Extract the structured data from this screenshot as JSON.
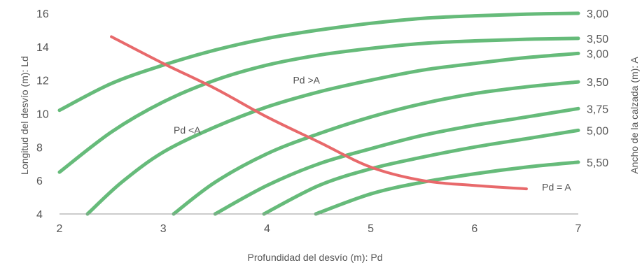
{
  "chart_data": {
    "type": "line",
    "title": "",
    "xlabel": "Profundidad del desvío (m): Pd",
    "ylabel": "Longitud del desvío (m): Ld",
    "ylabel_right": "Ancho de la calzada (m): A",
    "xlim": [
      2,
      7
    ],
    "ylim": [
      4,
      16
    ],
    "xticks": [
      "2",
      "3",
      "4",
      "5",
      "6",
      "7"
    ],
    "yticks": [
      "4",
      "6",
      "8",
      "10",
      "12",
      "14",
      "16"
    ],
    "grid": false,
    "colors": {
      "green": "#66bb7a",
      "red": "#e8696b",
      "axis": "#999999",
      "text": "#555555"
    },
    "series": [
      {
        "name": "3,00",
        "x": [
          2.0,
          2.5,
          3.0,
          3.5,
          4.0,
          4.5,
          5.0,
          5.5,
          6.0,
          6.5,
          7.0
        ],
        "y": [
          10.2,
          11.8,
          12.9,
          13.8,
          14.5,
          15.0,
          15.4,
          15.7,
          15.85,
          15.95,
          16.0
        ]
      },
      {
        "name": "3,50",
        "x": [
          2.0,
          2.5,
          3.0,
          3.5,
          4.0,
          4.5,
          5.0,
          5.5,
          6.0,
          6.5,
          7.0
        ],
        "y": [
          6.5,
          8.9,
          10.7,
          12.0,
          12.9,
          13.5,
          13.9,
          14.2,
          14.35,
          14.45,
          14.5
        ]
      },
      {
        "name": "3,00",
        "x": [
          2.27,
          2.6,
          3.0,
          3.5,
          4.0,
          4.5,
          5.0,
          5.5,
          6.0,
          6.5,
          7.0
        ],
        "y": [
          4.0,
          5.9,
          7.7,
          9.2,
          10.4,
          11.3,
          12.0,
          12.6,
          13.0,
          13.35,
          13.6
        ]
      },
      {
        "name": "3,50",
        "x": [
          3.1,
          3.5,
          4.0,
          4.5,
          5.0,
          5.5,
          6.0,
          6.5,
          7.0
        ],
        "y": [
          4.0,
          5.9,
          7.6,
          8.8,
          9.8,
          10.6,
          11.2,
          11.6,
          11.9
        ]
      },
      {
        "name": "3,75",
        "x": [
          3.5,
          4.0,
          4.5,
          5.0,
          5.5,
          6.0,
          6.5,
          7.0
        ],
        "y": [
          4.0,
          5.7,
          7.0,
          7.9,
          8.7,
          9.3,
          9.8,
          10.3
        ]
      },
      {
        "name": "5,00",
        "x": [
          3.97,
          4.5,
          5.0,
          5.5,
          6.0,
          6.5,
          7.0
        ],
        "y": [
          4.0,
          5.7,
          6.7,
          7.4,
          8.0,
          8.5,
          9.0
        ]
      },
      {
        "name": "5,50",
        "x": [
          4.47,
          5.0,
          5.5,
          6.0,
          6.5,
          7.0
        ],
        "y": [
          4.0,
          5.2,
          5.9,
          6.4,
          6.8,
          7.1
        ]
      },
      {
        "name": "Pd = A",
        "x": [
          2.5,
          3.0,
          3.5,
          4.0,
          4.5,
          5.0,
          5.5,
          6.0,
          6.5
        ],
        "y": [
          14.6,
          13.0,
          11.5,
          9.8,
          8.3,
          6.8,
          6.0,
          5.7,
          5.5
        ]
      }
    ],
    "annotations": [
      {
        "text": "Pd >A",
        "x": 4.25,
        "y": 11.8
      },
      {
        "text": "Pd <A",
        "x": 3.1,
        "y": 8.8
      },
      {
        "text": "Pd = A",
        "x": 6.65,
        "y": 5.4
      }
    ],
    "right_labels": [
      "3,00",
      "3,50",
      "3,00",
      "3,50",
      "3,75",
      "5,00",
      "5,50"
    ]
  }
}
